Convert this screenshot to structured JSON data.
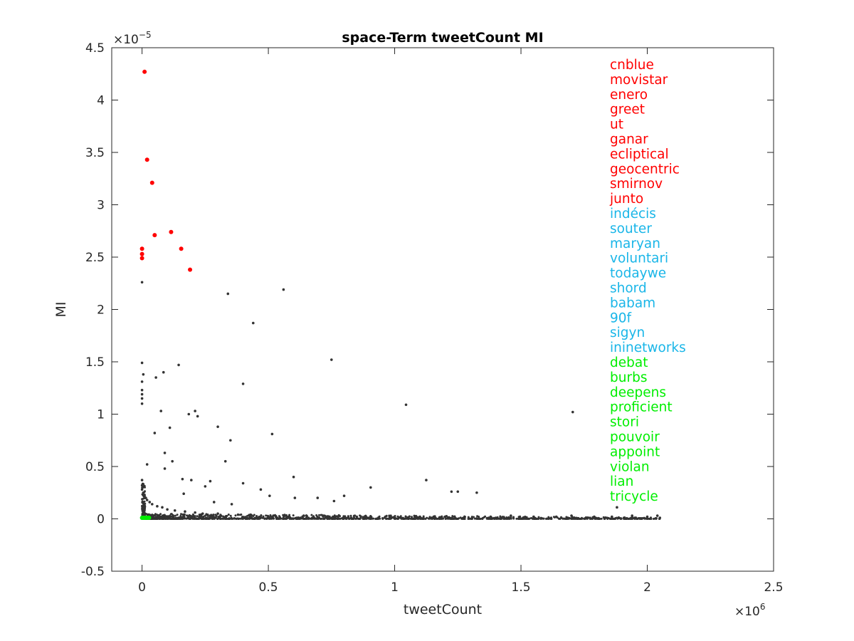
{
  "chart_data": {
    "type": "scatter",
    "title": "space-Term tweetCount MI",
    "xlabel": "tweetCount",
    "ylabel": "MI",
    "xlim": [
      -120000,
      2500000
    ],
    "ylim": [
      -5e-06,
      4.5e-05
    ],
    "x_ticks": [
      0,
      500000,
      1000000,
      1500000,
      2000000,
      2500000
    ],
    "x_tick_labels": [
      "0",
      "0.5",
      "1",
      "1.5",
      "2",
      "2.5"
    ],
    "y_ticks": [
      -5e-06,
      0,
      5e-06,
      1e-05,
      1.5e-05,
      2e-05,
      2.5e-05,
      3e-05,
      3.5e-05,
      4e-05,
      4.5e-05
    ],
    "y_tick_labels": [
      "-0.5",
      "0",
      "0.5",
      "1",
      "1.5",
      "2",
      "2.5",
      "3",
      "3.5",
      "4",
      "4.5"
    ],
    "x_exponent": {
      "base": "×10",
      "power": "6"
    },
    "y_exponent": {
      "base": "×10",
      "power": "−5"
    },
    "grid": false,
    "colors": {
      "top": "#ff0000",
      "mid": "#1ab6e8",
      "low": "#00ee00",
      "background_points": "#333333"
    },
    "annotated_terms": [
      {
        "label": "cnblue",
        "group": "top"
      },
      {
        "label": "movistar",
        "group": "top"
      },
      {
        "label": "enero",
        "group": "top"
      },
      {
        "label": "greet",
        "group": "top"
      },
      {
        "label": "ut",
        "group": "top"
      },
      {
        "label": "ganar",
        "group": "top"
      },
      {
        "label": "ecliptical",
        "group": "top"
      },
      {
        "label": "geocentric",
        "group": "top"
      },
      {
        "label": "smirnov",
        "group": "top"
      },
      {
        "label": "junto",
        "group": "top"
      },
      {
        "label": "indécis",
        "group": "mid"
      },
      {
        "label": "souter",
        "group": "mid"
      },
      {
        "label": "maryan",
        "group": "mid"
      },
      {
        "label": "voluntari",
        "group": "mid"
      },
      {
        "label": "todaywe",
        "group": "mid"
      },
      {
        "label": "shord",
        "group": "mid"
      },
      {
        "label": "babam",
        "group": "mid"
      },
      {
        "label": "90f",
        "group": "mid"
      },
      {
        "label": "sigyn",
        "group": "mid"
      },
      {
        "label": "ininetworks",
        "group": "mid"
      },
      {
        "label": "debat",
        "group": "low"
      },
      {
        "label": "burbs",
        "group": "low"
      },
      {
        "label": "deepens",
        "group": "low"
      },
      {
        "label": "proficient",
        "group": "low"
      },
      {
        "label": "stori",
        "group": "low"
      },
      {
        "label": "pouvoir",
        "group": "low"
      },
      {
        "label": "appoint",
        "group": "low"
      },
      {
        "label": "violan",
        "group": "low"
      },
      {
        "label": "lian",
        "group": "low"
      },
      {
        "label": "tricycle",
        "group": "low"
      }
    ],
    "highlight_points": [
      {
        "group": "top",
        "x": 10000,
        "y": 4.27e-05
      },
      {
        "group": "top",
        "x": 20000,
        "y": 3.43e-05
      },
      {
        "group": "top",
        "x": 40000,
        "y": 3.21e-05
      },
      {
        "group": "top",
        "x": 115000,
        "y": 2.74e-05
      },
      {
        "group": "top",
        "x": 50000,
        "y": 2.71e-05
      },
      {
        "group": "top",
        "x": 0,
        "y": 2.58e-05
      },
      {
        "group": "top",
        "x": 155000,
        "y": 2.58e-05
      },
      {
        "group": "top",
        "x": 0,
        "y": 2.53e-05
      },
      {
        "group": "top",
        "x": 0,
        "y": 2.49e-05
      },
      {
        "group": "top",
        "x": 190000,
        "y": 2.38e-05
      },
      {
        "group": "low",
        "x": 0,
        "y": 1e-07
      },
      {
        "group": "low",
        "x": 5000,
        "y": 1e-07
      },
      {
        "group": "low",
        "x": 10000,
        "y": 1e-07
      },
      {
        "group": "low",
        "x": 15000,
        "y": 1e-07
      },
      {
        "group": "low",
        "x": 22000,
        "y": 1e-07
      },
      {
        "group": "low",
        "x": 28000,
        "y": 1e-07
      }
    ],
    "background_points": [
      {
        "x": 0,
        "y": 2.26e-05
      },
      {
        "x": 340000,
        "y": 2.15e-05
      },
      {
        "x": 560000,
        "y": 2.19e-05
      },
      {
        "x": 440000,
        "y": 1.87e-05
      },
      {
        "x": 750000,
        "y": 1.52e-05
      },
      {
        "x": 0,
        "y": 1.49e-05
      },
      {
        "x": 145000,
        "y": 1.47e-05
      },
      {
        "x": 85000,
        "y": 1.4e-05
      },
      {
        "x": 5000,
        "y": 1.38e-05
      },
      {
        "x": 55000,
        "y": 1.35e-05
      },
      {
        "x": 0,
        "y": 1.31e-05
      },
      {
        "x": 400000,
        "y": 1.29e-05
      },
      {
        "x": 0,
        "y": 1.23e-05
      },
      {
        "x": 0,
        "y": 1.19e-05
      },
      {
        "x": 0,
        "y": 1.15e-05
      },
      {
        "x": 0,
        "y": 1.1e-05
      },
      {
        "x": 1045000,
        "y": 1.09e-05
      },
      {
        "x": 75000,
        "y": 1.03e-05
      },
      {
        "x": 210000,
        "y": 1.03e-05
      },
      {
        "x": 1705000,
        "y": 1.02e-05
      },
      {
        "x": 185000,
        "y": 1e-05
      },
      {
        "x": 220000,
        "y": 9.8e-06
      },
      {
        "x": 300000,
        "y": 8.8e-06
      },
      {
        "x": 110000,
        "y": 8.7e-06
      },
      {
        "x": 50000,
        "y": 8.2e-06
      },
      {
        "x": 515000,
        "y": 8.1e-06
      },
      {
        "x": 350000,
        "y": 7.5e-06
      },
      {
        "x": 90000,
        "y": 6.3e-06
      },
      {
        "x": 120000,
        "y": 5.5e-06
      },
      {
        "x": 330000,
        "y": 5.5e-06
      },
      {
        "x": 20000,
        "y": 5.2e-06
      },
      {
        "x": 90000,
        "y": 4.8e-06
      },
      {
        "x": 600000,
        "y": 4e-06
      },
      {
        "x": 160000,
        "y": 3.8e-06
      },
      {
        "x": 195000,
        "y": 3.7e-06
      },
      {
        "x": 270000,
        "y": 3.6e-06
      },
      {
        "x": 1125000,
        "y": 3.7e-06
      },
      {
        "x": 250000,
        "y": 3.1e-06
      },
      {
        "x": 400000,
        "y": 3.4e-06
      },
      {
        "x": 905000,
        "y": 3e-06
      },
      {
        "x": 470000,
        "y": 2.8e-06
      },
      {
        "x": 1225000,
        "y": 2.6e-06
      },
      {
        "x": 1250000,
        "y": 2.6e-06
      },
      {
        "x": 1325000,
        "y": 2.5e-06
      },
      {
        "x": 165000,
        "y": 2.4e-06
      },
      {
        "x": 800000,
        "y": 2.2e-06
      },
      {
        "x": 695000,
        "y": 2e-06
      },
      {
        "x": 505000,
        "y": 2.2e-06
      },
      {
        "x": 605000,
        "y": 2e-06
      },
      {
        "x": 285000,
        "y": 1.6e-06
      },
      {
        "x": 760000,
        "y": 1.7e-06
      },
      {
        "x": 1880000,
        "y": 1.1e-06
      },
      {
        "x": 355000,
        "y": 1.4e-06
      },
      {
        "x": 0,
        "y": 3.7e-06
      },
      {
        "x": 0,
        "y": 3.2e-06
      },
      {
        "x": 0,
        "y": 2.8e-06
      },
      {
        "x": 5000,
        "y": 2.5e-06
      },
      {
        "x": 10000,
        "y": 2.2e-06
      },
      {
        "x": 15000,
        "y": 2e-06
      },
      {
        "x": 20000,
        "y": 1.8e-06
      },
      {
        "x": 30000,
        "y": 1.6e-06
      },
      {
        "x": 40000,
        "y": 1.4e-06
      },
      {
        "x": 60000,
        "y": 1.2e-06
      },
      {
        "x": 80000,
        "y": 1.1e-06
      },
      {
        "x": 100000,
        "y": 9e-07
      },
      {
        "x": 130000,
        "y": 8e-07
      },
      {
        "x": 170000,
        "y": 7e-07
      },
      {
        "x": 210000,
        "y": 6e-07
      },
      {
        "x": 240000,
        "y": 5e-07
      },
      {
        "x": 300000,
        "y": 5e-07
      },
      {
        "x": 380000,
        "y": 4e-07
      },
      {
        "x": 430000,
        "y": 4e-07
      },
      {
        "x": 520000,
        "y": 3e-07
      },
      {
        "x": 640000,
        "y": 3e-07
      },
      {
        "x": 720000,
        "y": 3e-07
      },
      {
        "x": 850000,
        "y": 2e-07
      },
      {
        "x": 980000,
        "y": 2e-07
      },
      {
        "x": 1100000,
        "y": 2e-07
      },
      {
        "x": 1200000,
        "y": 2e-07
      },
      {
        "x": 1380000,
        "y": 2e-07
      },
      {
        "x": 1460000,
        "y": 3e-07
      },
      {
        "x": 1550000,
        "y": 2e-07
      },
      {
        "x": 1640000,
        "y": 2e-07
      },
      {
        "x": 1700000,
        "y": 3e-07
      },
      {
        "x": 1790000,
        "y": 2e-07
      },
      {
        "x": 1860000,
        "y": 2e-07
      },
      {
        "x": 1940000,
        "y": 3e-07
      },
      {
        "x": 2000000,
        "y": 2e-07
      },
      {
        "x": 2040000,
        "y": 3e-07
      },
      {
        "x": 2050000,
        "y": 1e-07
      }
    ],
    "dense_band": {
      "x_range": [
        0,
        2050000
      ],
      "y_range": [
        0,
        5e-07
      ],
      "note_color": "#333333"
    }
  }
}
